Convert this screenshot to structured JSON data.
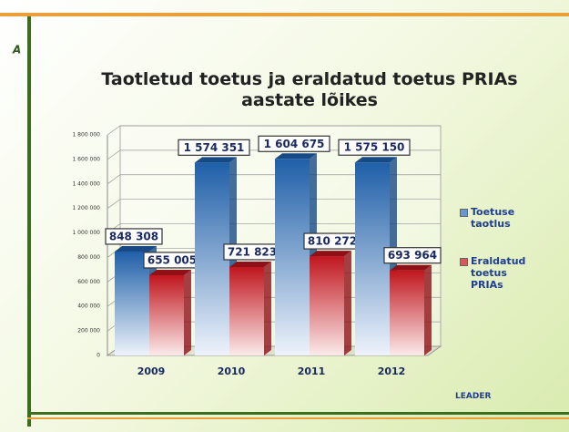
{
  "chart_data": {
    "type": "bar3d",
    "title": "Taotletud toetus ja eraldatud toetus PRIAs aastate lõikes",
    "categories": [
      "2009",
      "2010",
      "2011",
      "2012"
    ],
    "series": [
      {
        "name": "Toetuse taotlus",
        "color": "#1f5fa8",
        "values": [
          848308,
          1574351,
          1604675,
          1575150
        ],
        "value_labels": [
          "848 308",
          "1 574 351",
          "1 604 675",
          "1 575 150"
        ]
      },
      {
        "name": "Eraldatud toetus PRIAs",
        "color": "#c0161e",
        "values": [
          655005,
          721823,
          810272,
          693964
        ],
        "value_labels": [
          "655 005",
          "721 823",
          "810 272",
          "693 964"
        ]
      }
    ],
    "ylim": [
      0,
      1800000
    ],
    "yticks": [
      0,
      {
        "value": 200000,
        "label": "200 000"
      },
      {
        "value": 400000,
        "label": "400 000"
      },
      {
        "value": 600000,
        "label": "600 000"
      },
      {
        "value": 800000,
        "label": "800 000"
      },
      {
        "value": 1000000,
        "label": "1 000 000"
      },
      {
        "value": 1200000,
        "label": "1 200 000"
      },
      {
        "value": 1400000,
        "label": "1 400 000"
      },
      {
        "value": 1600000,
        "label": "1 600 000"
      },
      {
        "value": 1800000,
        "label": "1 800 000"
      }
    ],
    "grid": true,
    "legend": "right",
    "logo_text": "LEADER"
  }
}
